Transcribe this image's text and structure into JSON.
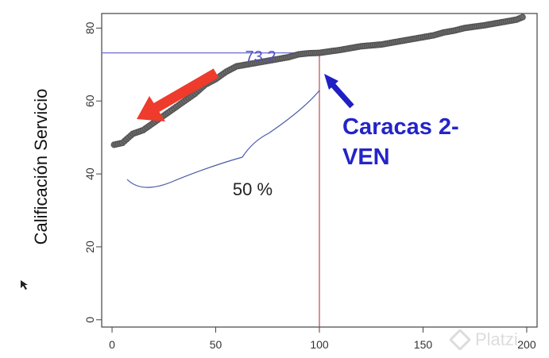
{
  "chart_data": {
    "type": "scatter",
    "xlabel": "",
    "ylabel": "Calificación Servicio",
    "xlim": [
      -5,
      205
    ],
    "ylim": [
      -2,
      84
    ],
    "xticks": [
      0,
      50,
      100,
      150,
      200
    ],
    "yticks": [
      0,
      20,
      40,
      60,
      80
    ],
    "x": [
      1,
      5,
      10,
      15,
      20,
      25,
      30,
      35,
      40,
      45,
      50,
      55,
      60,
      65,
      70,
      75,
      80,
      85,
      90,
      95,
      100,
      110,
      120,
      130,
      140,
      150,
      155,
      160,
      165,
      170,
      180,
      190,
      195,
      198
    ],
    "y": [
      48,
      48.5,
      51,
      52,
      54,
      56,
      58,
      60,
      62,
      64.5,
      66,
      68,
      69.5,
      70,
      70.5,
      71,
      71.5,
      72,
      72.8,
      73.1,
      73.2,
      74,
      75,
      75.5,
      76.5,
      77.5,
      78,
      78.8,
      79.3,
      80,
      80.8,
      81.8,
      82.3,
      83
    ],
    "annotations": {
      "median_value_label": "73.2",
      "highlight_label": "Caracas 2-VEN",
      "span_label": "50 %"
    },
    "colors": {
      "points": "#505050",
      "hline": "#6a6ad2",
      "vline": "#c0454f",
      "blue_arrow": "#1f1fc4",
      "red_arrow": "#ef3b2c",
      "label_blue": "#2424c8",
      "value_label": "#5050c0"
    }
  },
  "overlay": {
    "watermark": "Platzi"
  }
}
